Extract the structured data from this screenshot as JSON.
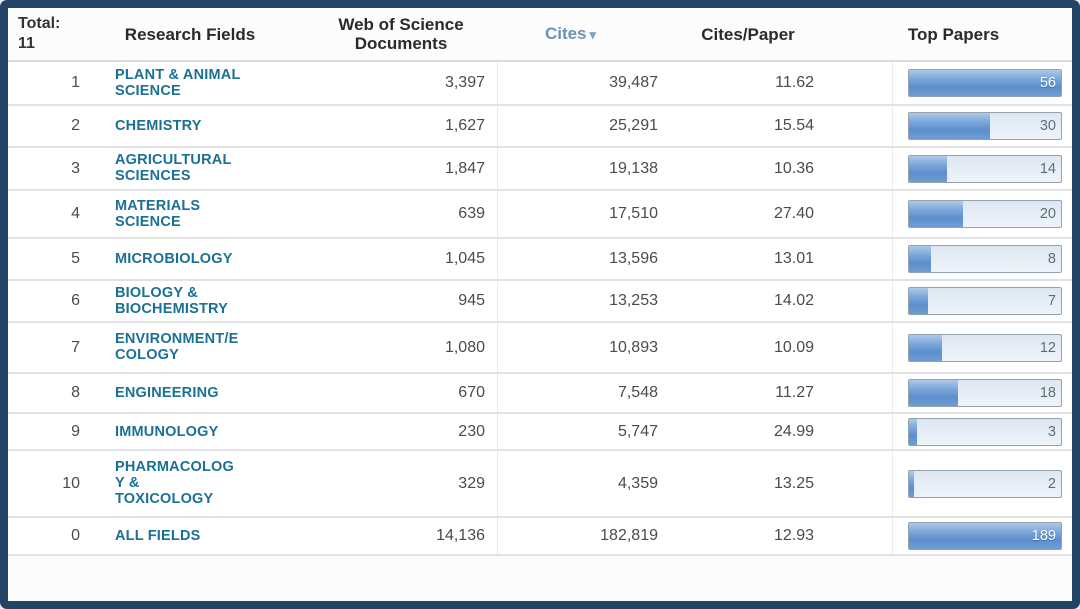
{
  "colors": {
    "frame_border": "#234465",
    "field_link": "#1b7095",
    "cites_header_link": "#6d92b8",
    "bar_fill": "#5c8fcb",
    "bar_track": "#e3ebf4",
    "row_separator": "#e2e2e2"
  },
  "table": {
    "corner": {
      "label": "Total:",
      "count": "11"
    },
    "columns": {
      "research_fields": "Research Fields",
      "documents": "Web of Science Documents",
      "cites": "Cites",
      "cites_sort_icon": "▾",
      "cites_per_paper": "Cites/Paper",
      "top_papers": "Top Papers"
    },
    "bar_scale_max": 56,
    "rows": [
      {
        "rank": "1",
        "field": "PLANT & ANIMAL\nSCIENCE",
        "documents": "3,397",
        "cites": "39,487",
        "cites_per_paper": "11.62",
        "top_papers": 56
      },
      {
        "rank": "2",
        "field": "CHEMISTRY",
        "documents": "1,627",
        "cites": "25,291",
        "cites_per_paper": "15.54",
        "top_papers": 30
      },
      {
        "rank": "3",
        "field": "AGRICULTURAL\nSCIENCES",
        "documents": "1,847",
        "cites": "19,138",
        "cites_per_paper": "10.36",
        "top_papers": 14
      },
      {
        "rank": "4",
        "field": "MATERIALS\nSCIENCE",
        "documents": "639",
        "cites": "17,510",
        "cites_per_paper": "27.40",
        "top_papers": 20
      },
      {
        "rank": "5",
        "field": "MICROBIOLOGY",
        "documents": "1,045",
        "cites": "13,596",
        "cites_per_paper": "13.01",
        "top_papers": 8
      },
      {
        "rank": "6",
        "field": "BIOLOGY &\nBIOCHEMISTRY",
        "documents": "945",
        "cites": "13,253",
        "cites_per_paper": "14.02",
        "top_papers": 7
      },
      {
        "rank": "7",
        "field": "ENVIRONMENT/E\nCOLOGY",
        "documents": "1,080",
        "cites": "10,893",
        "cites_per_paper": "10.09",
        "top_papers": 12
      },
      {
        "rank": "8",
        "field": "ENGINEERING",
        "documents": "670",
        "cites": "7,548",
        "cites_per_paper": "11.27",
        "top_papers": 18
      },
      {
        "rank": "9",
        "field": "IMMUNOLOGY",
        "documents": "230",
        "cites": "5,747",
        "cites_per_paper": "24.99",
        "top_papers": 3
      },
      {
        "rank": "10",
        "field": "PHARMACOLOG\nY &\nTOXICOLOGY",
        "documents": "329",
        "cites": "4,359",
        "cites_per_paper": "13.25",
        "top_papers": 2
      },
      {
        "rank": "0",
        "field": "ALL FIELDS",
        "documents": "14,136",
        "cites": "182,819",
        "cites_per_paper": "12.93",
        "top_papers": 189
      }
    ]
  }
}
